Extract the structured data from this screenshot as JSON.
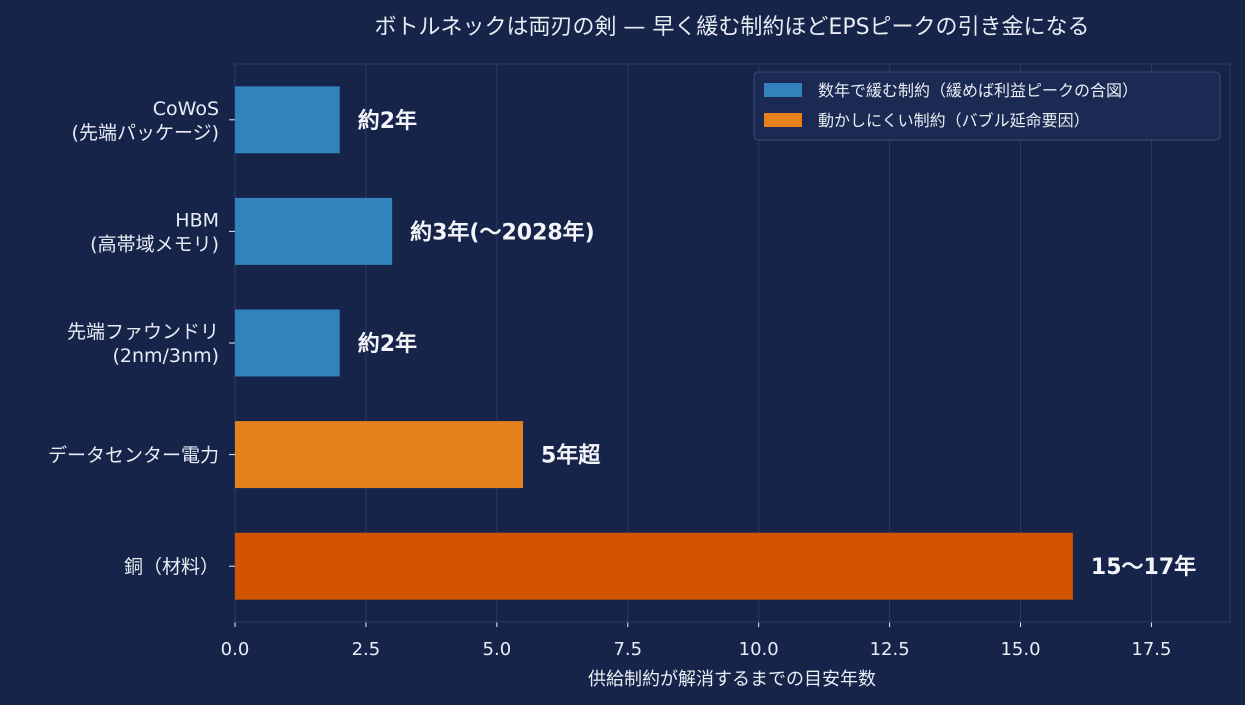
{
  "chart_data": {
    "type": "bar",
    "orientation": "horizontal",
    "title": "ボトルネックは両刃の剣 — 早く緩む制約ほどEPSピークの引き金になる",
    "xlabel": "供給制約が解消するまでの目安年数",
    "ylabel": "",
    "xlim": [
      0,
      19
    ],
    "xticks": [
      "0.0",
      "2.5",
      "5.0",
      "7.5",
      "10.0",
      "12.5",
      "15.0",
      "17.5"
    ],
    "grid": "vertical",
    "legend_position": "top-right",
    "categories": [
      [
        "CoWoS",
        "(先端パッケージ)"
      ],
      [
        "HBM",
        "(高帯域メモリ)"
      ],
      [
        "先端ファウンドリ",
        "(2nm/3nm)"
      ],
      [
        "データセンター電力"
      ],
      [
        "銅（材料）"
      ]
    ],
    "values": [
      2,
      3,
      2,
      5.5,
      16
    ],
    "data_labels": [
      "約2年",
      "約3年(〜2028年)",
      "約2年",
      "5年超",
      "15〜17年"
    ],
    "bar_colors": [
      "#3182bd",
      "#3182bd",
      "#3182bd",
      "#e6821e",
      "#d35400"
    ],
    "legend": [
      {
        "label": "数年で緩む制約（緩めば利益ピークの合図）",
        "color": "#3182bd"
      },
      {
        "label": "動かしにくい制約（バブル延命要因）",
        "color": "#e6821e"
      }
    ]
  },
  "colors": {
    "background": "#16244a",
    "text": "#e8ecf3"
  }
}
